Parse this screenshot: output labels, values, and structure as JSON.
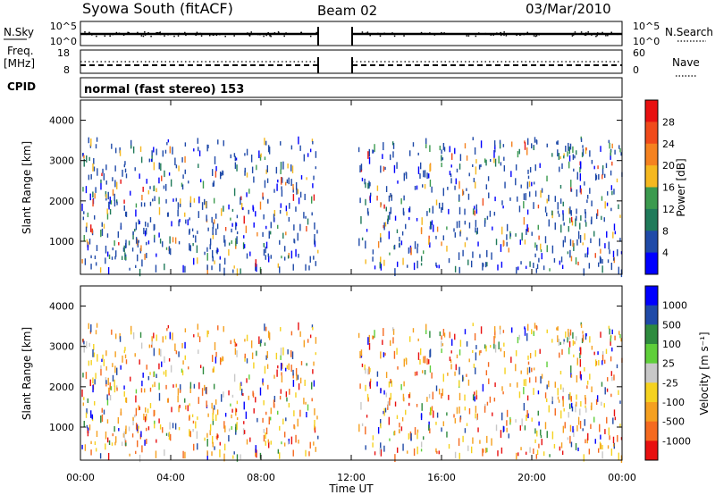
{
  "header": {
    "title": "Syowa South (fitACF)",
    "beam": "Beam 02",
    "date": "03/Mar/2010"
  },
  "strips": {
    "nsky_label": "N.Sky",
    "nsky_ticks": [
      "10^5",
      "10^0"
    ],
    "nsearch_label": "N.Search",
    "nsearch_ticks": [
      "10^5",
      "10^0"
    ],
    "freq_label_1": "Freq.",
    "freq_label_2": "[MHz]",
    "freq_ticks": [
      "18",
      "8"
    ],
    "nave_label": "Nave",
    "nave_ticks": [
      "60",
      "0"
    ],
    "cpid_label": "CPID",
    "cpid_value": "normal (fast stereo) 153"
  },
  "panels": {
    "ylabel": "Slant Range [km]",
    "xlabel": "Time UT",
    "y_ticks": [
      "4000",
      "3000",
      "2000",
      "1000"
    ],
    "x_ticks": [
      "00:00",
      "04:00",
      "08:00",
      "12:00",
      "16:00",
      "20:00",
      "00:00"
    ]
  },
  "chart_data": [
    {
      "type": "heatmap",
      "name": "power",
      "ylabel": "Slant Range [km]",
      "ylim": [
        180,
        4500
      ],
      "x_range_hours": [
        0,
        24
      ],
      "data_gap_hours": [
        10.5,
        12.3
      ],
      "colorbar": {
        "label": "Power [dB]",
        "ticks": [
          "28",
          "24",
          "20",
          "16",
          "12",
          "8",
          "4"
        ],
        "colors": [
          "#e81010",
          "#f04a1a",
          "#f5821f",
          "#f5b81f",
          "#3b9a4e",
          "#1f7a5a",
          "#1f4aa8",
          "#0000ff"
        ]
      }
    },
    {
      "type": "heatmap",
      "name": "velocity",
      "ylabel": "Slant Range [km]",
      "xlabel": "Time UT",
      "ylim": [
        180,
        4500
      ],
      "x_range_hours": [
        0,
        24
      ],
      "data_gap_hours": [
        10.5,
        12.3
      ],
      "colorbar": {
        "label": "Velocity [m s⁻¹]",
        "ticks": [
          "1000",
          "500",
          "100",
          "25",
          "-25",
          "-100",
          "-500",
          "-1000"
        ],
        "colors": [
          "#0000ff",
          "#1f4aa8",
          "#2e8b3e",
          "#5fcf3a",
          "#c8c8c8",
          "#f5d21f",
          "#f5a01f",
          "#f56a1f",
          "#e81010"
        ]
      }
    }
  ]
}
